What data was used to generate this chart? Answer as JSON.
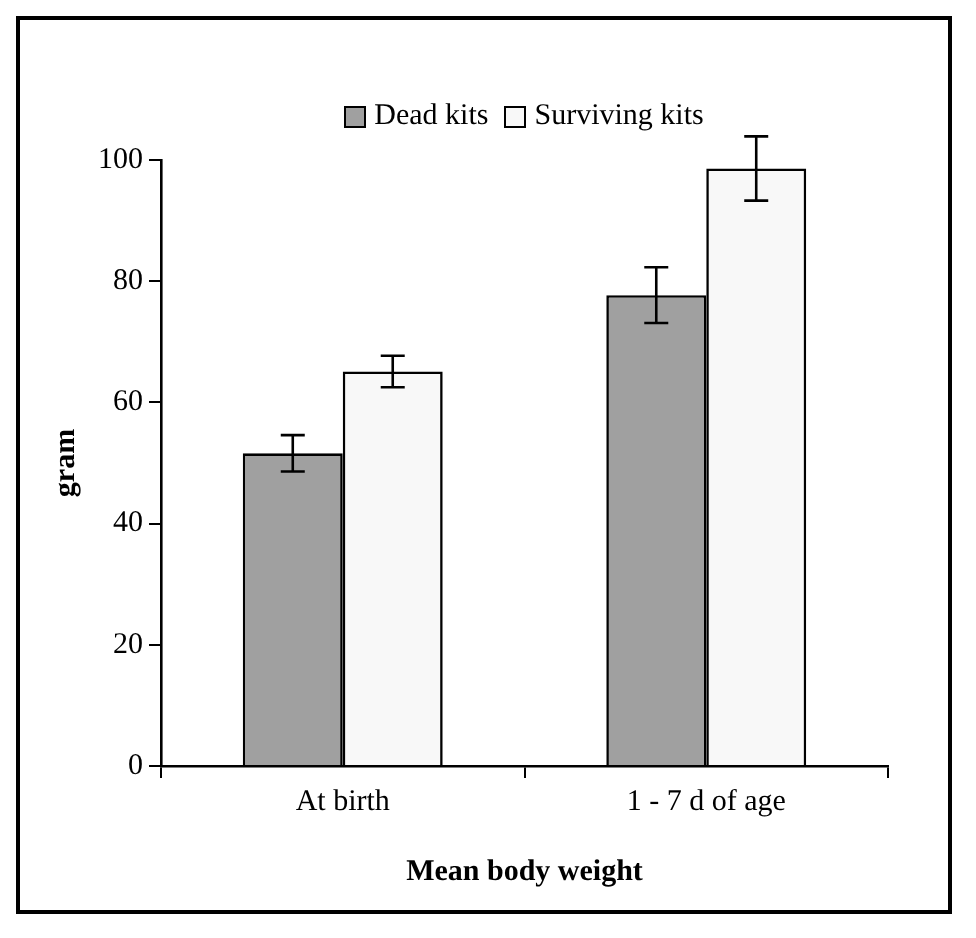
{
  "chart_data": {
    "type": "bar",
    "xlabel": "Mean body weight",
    "ylabel": "gram",
    "categories": [
      "At birth",
      "1 - 7 d of age"
    ],
    "series": [
      {
        "name": "Dead kits",
        "color": "#a0a0a0",
        "values": [
          51.6,
          77.7
        ],
        "errors": [
          3,
          4.6
        ]
      },
      {
        "name": "Surviving kits",
        "color": "#f8f8f8",
        "values": [
          65.1,
          98.6
        ],
        "errors": [
          2.6,
          5.3
        ]
      }
    ],
    "ylim": [
      0,
      100
    ],
    "yticks": [
      0,
      20,
      40,
      60,
      80,
      100
    ],
    "grid": false,
    "legend": "top"
  }
}
